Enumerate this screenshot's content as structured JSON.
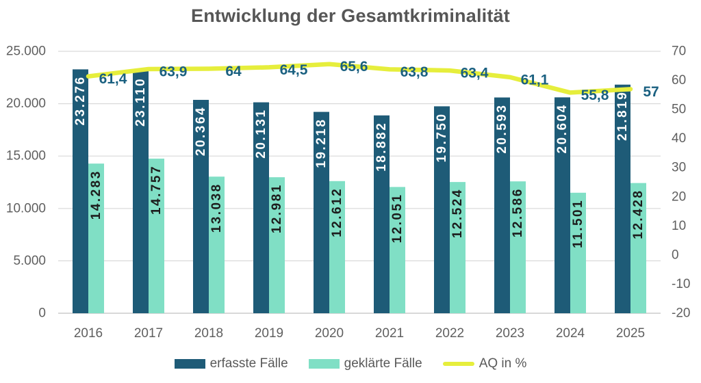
{
  "title": "Entwicklung der Gesamtkriminalität",
  "chart_data": {
    "type": "bar",
    "subtype": "grouped-bars-with-line-overlay",
    "categories": [
      "2016",
      "2017",
      "2018",
      "2019",
      "2020",
      "2021",
      "2022",
      "2023",
      "2024",
      "2025"
    ],
    "series": [
      {
        "name": "erfasste Fälle",
        "type": "bar",
        "axis": "left",
        "color": "#1e5b77",
        "values": [
          23276,
          23110,
          20364,
          20131,
          19218,
          18882,
          19750,
          20593,
          20604,
          21819
        ],
        "labels": [
          "23.276",
          "23.110",
          "20.364",
          "20.131",
          "19.218",
          "18.882",
          "19.750",
          "20.593",
          "20.604",
          "21.819"
        ]
      },
      {
        "name": "geklärte Fälle",
        "type": "bar",
        "axis": "left",
        "color": "#80dfc5",
        "values": [
          14283,
          14757,
          13038,
          12981,
          12612,
          12051,
          12524,
          12586,
          11501,
          12428
        ],
        "labels": [
          "14.283",
          "14.757",
          "13.038",
          "12.981",
          "12.612",
          "12.051",
          "12.524",
          "12.586",
          "11.501",
          "12.428"
        ]
      },
      {
        "name": "AQ in %",
        "type": "line",
        "axis": "right",
        "color": "#e6ee3c",
        "values": [
          61.4,
          63.9,
          64.0,
          64.5,
          65.6,
          63.8,
          63.4,
          61.1,
          55.8,
          57.0
        ],
        "labels": [
          "61,4",
          "63,9",
          "64",
          "64,5",
          "65,6",
          "63,8",
          "63,4",
          "61,1",
          "55,8",
          "57"
        ]
      }
    ],
    "left_axis": {
      "min": 0,
      "max": 25000,
      "ticks": [
        "25.000",
        "20.000",
        "15.000",
        "10.000",
        "5.000",
        "0"
      ]
    },
    "right_axis": {
      "min": -20,
      "max": 70,
      "ticks": [
        "70",
        "60",
        "50",
        "40",
        "30",
        "20",
        "10",
        "0",
        "-10",
        "-20"
      ]
    },
    "grid": true,
    "legend_position": "bottom",
    "colors": {
      "title_text": "#565656",
      "axis_text": "#5f5f5f",
      "gridline": "#d9d9d9",
      "zero_line": "#c0c0c0",
      "aq_label_text": "#1a6080",
      "bar_label_dark_series": "#ffffff",
      "bar_label_light_series": "#1c1c1c"
    }
  }
}
